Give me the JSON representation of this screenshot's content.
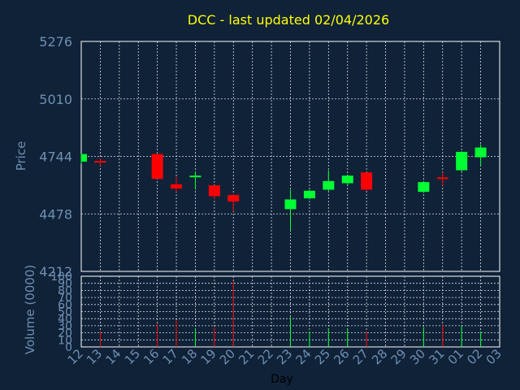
{
  "chart_data": {
    "type": "candlestick",
    "title": "DCC - last updated 02/04/2026",
    "xlabel": "Day",
    "price_panel": {
      "ylabel": "Price",
      "ylim": [
        4212,
        5276
      ],
      "y_ticks": [
        "5276",
        "5010",
        "4744",
        "4478",
        "4212"
      ],
      "grid": true
    },
    "volume_panel": {
      "ylabel": "Volume (0000)",
      "ylim": [
        0,
        100
      ],
      "y_ticks": [
        "100",
        "90",
        "80",
        "70",
        "60",
        "50",
        "40",
        "30",
        "20",
        "10",
        "0"
      ],
      "grid": true
    },
    "x_ticks": [
      "12",
      "13",
      "14",
      "15",
      "16",
      "17",
      "18",
      "19",
      "20",
      "21",
      "22",
      "23",
      "24",
      "25",
      "26",
      "27",
      "28",
      "29",
      "30",
      "31",
      "01",
      "02",
      "03"
    ],
    "candles": [
      {
        "day": "12",
        "open": 4720,
        "close": 4755,
        "high": 4755,
        "low": 4710,
        "volume": 0
      },
      {
        "day": "13",
        "open": 4723,
        "close": 4718,
        "high": 4735,
        "low": 4700,
        "volume": 22
      },
      {
        "day": "16",
        "open": 4755,
        "close": 4640,
        "high": 4755,
        "low": 4640,
        "volume": 33
      },
      {
        "day": "17",
        "open": 4615,
        "close": 4595,
        "high": 4650,
        "low": 4580,
        "volume": 38
      },
      {
        "day": "18",
        "open": 4650,
        "close": 4655,
        "high": 4675,
        "low": 4590,
        "volume": 26
      },
      {
        "day": "19",
        "open": 4610,
        "close": 4560,
        "high": 4610,
        "low": 4545,
        "volume": 28
      },
      {
        "day": "20",
        "open": 4565,
        "close": 4535,
        "high": 4570,
        "low": 4490,
        "volume": 93
      },
      {
        "day": "23",
        "open": 4500,
        "close": 4545,
        "high": 4590,
        "low": 4400,
        "volume": 42
      },
      {
        "day": "24",
        "open": 4550,
        "close": 4585,
        "high": 4590,
        "low": 4545,
        "volume": 22
      },
      {
        "day": "25",
        "open": 4590,
        "close": 4630,
        "high": 4680,
        "low": 4585,
        "volume": 26
      },
      {
        "day": "26",
        "open": 4620,
        "close": 4655,
        "high": 4660,
        "low": 4610,
        "volume": 26
      },
      {
        "day": "27",
        "open": 4670,
        "close": 4590,
        "high": 4670,
        "low": 4585,
        "volume": 22
      },
      {
        "day": "30",
        "open": 4580,
        "close": 4625,
        "high": 4630,
        "low": 4575,
        "volume": 28
      },
      {
        "day": "31",
        "open": 4647,
        "close": 4642,
        "high": 4670,
        "low": 4610,
        "volume": 32
      },
      {
        "day": "01",
        "open": 4680,
        "close": 4765,
        "high": 4768,
        "low": 4675,
        "volume": 30
      },
      {
        "day": "02",
        "open": 4740,
        "close": 4785,
        "high": 4800,
        "low": 4700,
        "volume": 22
      }
    ],
    "colors": {
      "background": "#0f2238",
      "title": "#ffff00",
      "axis_text": "#6f8fb2",
      "grid": "#ffffff",
      "up": "#00ff33",
      "down": "#ff0000"
    }
  }
}
